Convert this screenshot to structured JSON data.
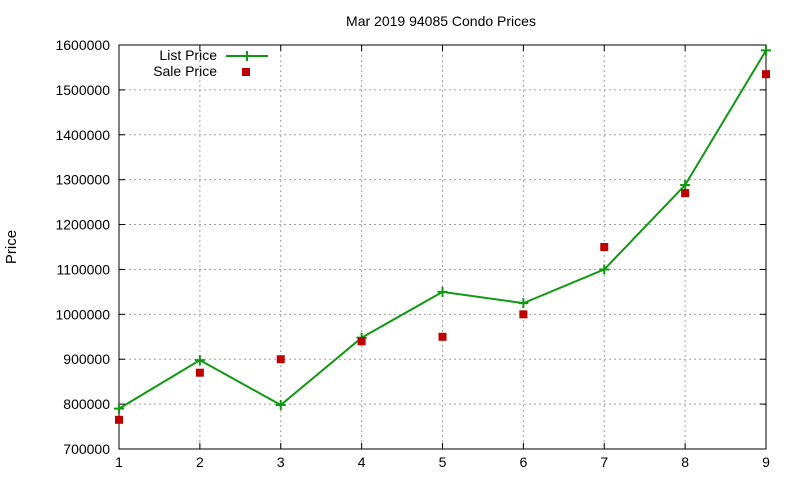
{
  "chart_data": {
    "type": "line",
    "title": "Mar 2019 94085 Condo Prices",
    "xlabel": "",
    "ylabel": "Price",
    "xlim": [
      1,
      9
    ],
    "ylim": [
      700000,
      1600000
    ],
    "xticks": [
      "1",
      "2",
      "3",
      "4",
      "5",
      "6",
      "7",
      "8",
      "9"
    ],
    "yticks": [
      "700000",
      "800000",
      "900000",
      "1000000",
      "1100000",
      "1200000",
      "1300000",
      "1400000",
      "1500000",
      "1600000"
    ],
    "grid": true,
    "legend_position": "top-left",
    "series": [
      {
        "name": "List Price",
        "style": "linespoints",
        "color": "#109910",
        "x": [
          1,
          2,
          3,
          4,
          5,
          6,
          7,
          8,
          9
        ],
        "values": [
          790000,
          898000,
          798000,
          948000,
          1050000,
          1025000,
          1100000,
          1288000,
          1588000
        ]
      },
      {
        "name": "Sale Price",
        "style": "points",
        "color": "#c00000",
        "x": [
          1,
          2,
          3,
          4,
          5,
          6,
          7,
          8,
          9
        ],
        "values": [
          765000,
          870000,
          900000,
          940000,
          950000,
          1000000,
          1150000,
          1270000,
          1535000
        ]
      }
    ]
  }
}
